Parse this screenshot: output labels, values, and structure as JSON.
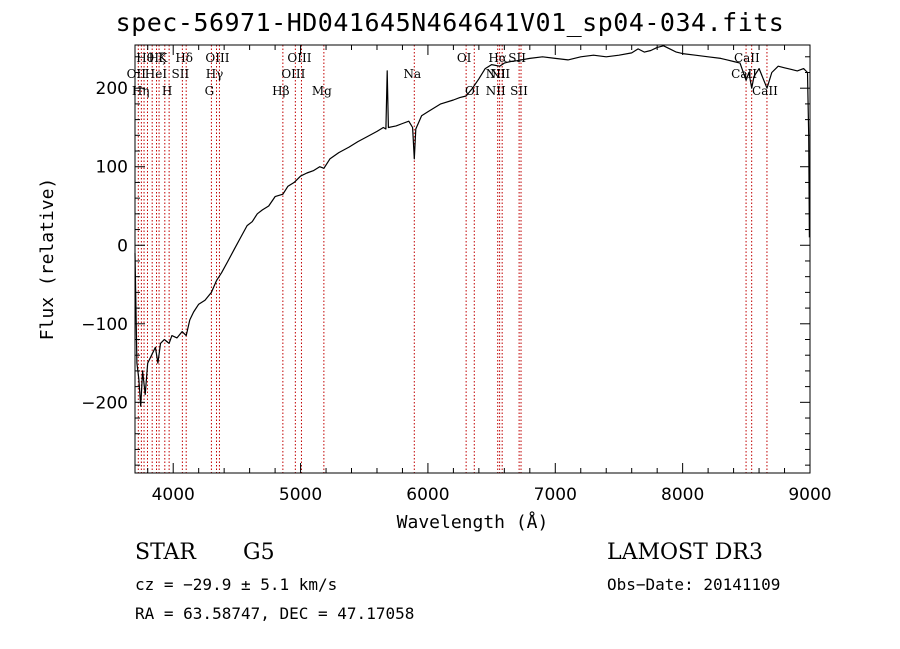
{
  "chart_data": {
    "type": "line",
    "title": "spec-56971-HD041645N464641V01_sp04-034.fits",
    "xlabel": "Wavelength (Å)",
    "ylabel": "Flux (relative)",
    "xlim": [
      3700,
      9000
    ],
    "ylim": [
      -290,
      255
    ],
    "xticks": [
      4000,
      5000,
      6000,
      7000,
      8000,
      9000
    ],
    "yticks": [
      -200,
      -100,
      0,
      100,
      200
    ],
    "series": [
      {
        "points": [
          [
            3700,
            -10
          ],
          [
            3715,
            -150
          ],
          [
            3730,
            -170
          ],
          [
            3745,
            -205
          ],
          [
            3760,
            -160
          ],
          [
            3780,
            -190
          ],
          [
            3800,
            -150
          ],
          [
            3830,
            -140
          ],
          [
            3860,
            -130
          ],
          [
            3880,
            -150
          ],
          [
            3900,
            -125
          ],
          [
            3930,
            -120
          ],
          [
            3968,
            -125
          ],
          [
            3990,
            -115
          ],
          [
            4030,
            -118
          ],
          [
            4070,
            -110
          ],
          [
            4102,
            -115
          ],
          [
            4130,
            -95
          ],
          [
            4160,
            -85
          ],
          [
            4200,
            -75
          ],
          [
            4250,
            -70
          ],
          [
            4300,
            -60
          ],
          [
            4340,
            -45
          ],
          [
            4380,
            -35
          ],
          [
            4430,
            -20
          ],
          [
            4480,
            -5
          ],
          [
            4530,
            10
          ],
          [
            4580,
            25
          ],
          [
            4620,
            30
          ],
          [
            4660,
            40
          ],
          [
            4700,
            45
          ],
          [
            4750,
            50
          ],
          [
            4800,
            62
          ],
          [
            4861,
            65
          ],
          [
            4900,
            75
          ],
          [
            4950,
            80
          ],
          [
            5000,
            88
          ],
          [
            5050,
            92
          ],
          [
            5100,
            95
          ],
          [
            5150,
            100
          ],
          [
            5183,
            98
          ],
          [
            5230,
            110
          ],
          [
            5300,
            118
          ],
          [
            5380,
            125
          ],
          [
            5450,
            132
          ],
          [
            5520,
            138
          ],
          [
            5600,
            145
          ],
          [
            5650,
            150
          ],
          [
            5670,
            148
          ],
          [
            5680,
            222
          ],
          [
            5690,
            150
          ],
          [
            5750,
            152
          ],
          [
            5800,
            155
          ],
          [
            5850,
            158
          ],
          [
            5880,
            150
          ],
          [
            5893,
            110
          ],
          [
            5905,
            148
          ],
          [
            5950,
            165
          ],
          [
            6000,
            170
          ],
          [
            6100,
            180
          ],
          [
            6200,
            185
          ],
          [
            6250,
            188
          ],
          [
            6300,
            190
          ],
          [
            6350,
            200
          ],
          [
            6400,
            212
          ],
          [
            6450,
            225
          ],
          [
            6500,
            230
          ],
          [
            6563,
            228
          ],
          [
            6600,
            232
          ],
          [
            6650,
            234
          ],
          [
            6700,
            235
          ],
          [
            6800,
            238
          ],
          [
            6900,
            240
          ],
          [
            7000,
            238
          ],
          [
            7100,
            236
          ],
          [
            7200,
            240
          ],
          [
            7300,
            242
          ],
          [
            7400,
            240
          ],
          [
            7500,
            242
          ],
          [
            7600,
            245
          ],
          [
            7650,
            250
          ],
          [
            7700,
            246
          ],
          [
            7750,
            248
          ],
          [
            7800,
            252
          ],
          [
            7850,
            254
          ],
          [
            7900,
            250
          ],
          [
            7950,
            246
          ],
          [
            8000,
            244
          ],
          [
            8100,
            242
          ],
          [
            8200,
            240
          ],
          [
            8300,
            238
          ],
          [
            8350,
            236
          ],
          [
            8400,
            234
          ],
          [
            8450,
            232
          ],
          [
            8498,
            210
          ],
          [
            8520,
            220
          ],
          [
            8542,
            200
          ],
          [
            8560,
            215
          ],
          [
            8600,
            225
          ],
          [
            8662,
            200
          ],
          [
            8700,
            220
          ],
          [
            8750,
            228
          ],
          [
            8800,
            226
          ],
          [
            8850,
            224
          ],
          [
            8900,
            222
          ],
          [
            8950,
            225
          ],
          [
            8980,
            220
          ],
          [
            8990,
            140
          ],
          [
            8995,
            10
          ]
        ]
      }
    ],
    "lines": [
      {
        "x": 3726,
        "labels": [
          "OII"
        ]
      },
      {
        "x": 3750,
        "labels": [
          "Hη"
        ]
      },
      {
        "x": 3771,
        "labels": [
          "Hη"
        ]
      },
      {
        "x": 3798,
        "labels": [
          "Hθ"
        ]
      },
      {
        "x": 3835,
        "labels": [
          "Hη"
        ]
      },
      {
        "x": 3869,
        "labels": [
          "NeIII"
        ]
      },
      {
        "x": 3889,
        "labels": [
          "Hζ",
          "HeI"
        ]
      },
      {
        "x": 3934,
        "labels": [
          "K"
        ]
      },
      {
        "x": 3968,
        "labels": [
          "H"
        ]
      },
      {
        "x": 4072,
        "labels": [
          "SII"
        ]
      },
      {
        "x": 4102,
        "labels": [
          "Hδ"
        ]
      },
      {
        "x": 4300,
        "labels": [
          "G"
        ]
      },
      {
        "x": 4340,
        "labels": [
          "Hγ"
        ]
      },
      {
        "x": 4363,
        "labels": [
          "OIII"
        ]
      },
      {
        "x": 4861,
        "labels": [
          "Hβ"
        ]
      },
      {
        "x": 4959,
        "labels": [
          "OIII"
        ]
      },
      {
        "x": 5007,
        "labels": [
          "OIII"
        ]
      },
      {
        "x": 5183,
        "labels": [
          "Mg"
        ]
      },
      {
        "x": 5893,
        "labels": [
          "Na"
        ]
      },
      {
        "x": 6300,
        "labels": [
          "OI"
        ]
      },
      {
        "x": 6364,
        "labels": [
          "OI"
        ]
      },
      {
        "x": 6548,
        "labels": [
          "NII"
        ]
      },
      {
        "x": 6563,
        "labels": [
          "Hα"
        ]
      },
      {
        "x": 6583,
        "labels": [
          "NII"
        ]
      },
      {
        "x": 6716,
        "labels": [
          "SII"
        ]
      },
      {
        "x": 6731,
        "labels": [
          "SII"
        ]
      },
      {
        "x": 8498,
        "labels": [
          "CaII"
        ]
      },
      {
        "x": 8542,
        "labels": [
          "CaII"
        ]
      },
      {
        "x": 8662,
        "labels": [
          "CaII"
        ]
      }
    ],
    "line_label_texts": [
      {
        "text": "Hθ",
        "x": 3795,
        "row": 0
      },
      {
        "text": "OII",
        "x": 3726,
        "row": 1
      },
      {
        "text": "Hη",
        "x": 3760,
        "row": 2
      },
      {
        "text": "Hζ",
        "x": 3889,
        "row": 0
      },
      {
        "text": "K",
        "x": 3934,
        "row": 0
      },
      {
        "text": "Hδ",
        "x": 4102,
        "row": 0
      },
      {
        "text": "HeI",
        "x": 3880,
        "row": 1
      },
      {
        "text": "SII",
        "x": 4072,
        "row": 1
      },
      {
        "text": "H",
        "x": 3968,
        "row": 2
      },
      {
        "text": "OIII",
        "x": 4363,
        "row": 0
      },
      {
        "text": "Hγ",
        "x": 4340,
        "row": 1
      },
      {
        "text": "G",
        "x": 4300,
        "row": 2
      },
      {
        "text": "OIII",
        "x": 5007,
        "row": 0
      },
      {
        "text": "OIII",
        "x": 4959,
        "row": 1
      },
      {
        "text": "Hβ",
        "x": 4861,
        "row": 2
      },
      {
        "text": "Mg",
        "x": 5183,
        "row": 2
      },
      {
        "text": "Na",
        "x": 5893,
        "row": 1
      },
      {
        "text": "OI",
        "x": 6300,
        "row": 0
      },
      {
        "text": "OI",
        "x": 6364,
        "row": 2
      },
      {
        "text": "Hα",
        "x": 6563,
        "row": 0
      },
      {
        "text": "SII",
        "x": 6716,
        "row": 0
      },
      {
        "text": "NII",
        "x": 6548,
        "row": 1
      },
      {
        "text": "NII",
        "x": 6583,
        "row": 1
      },
      {
        "text": "NII",
        "x": 6548,
        "row": 2
      },
      {
        "text": "SII",
        "x": 6731,
        "row": 2
      },
      {
        "text": "CaII",
        "x": 8520,
        "row": 0
      },
      {
        "text": "CaII",
        "x": 8498,
        "row": 1
      },
      {
        "text": "CaII",
        "x": 8662,
        "row": 2
      }
    ],
    "grid": false
  },
  "info": {
    "object_class": "STAR",
    "subclass": "G5",
    "survey": "LAMOST DR3",
    "cz": "cz = −29.9 ± 5.1 km/s",
    "obs_date": "Obs−Date: 20141109",
    "coords": "RA =  63.58747, DEC =  47.17058"
  },
  "colors": {
    "spectrum": "#000000",
    "line_markers": "#c00000",
    "axis": "#000000",
    "background": "#ffffff"
  }
}
